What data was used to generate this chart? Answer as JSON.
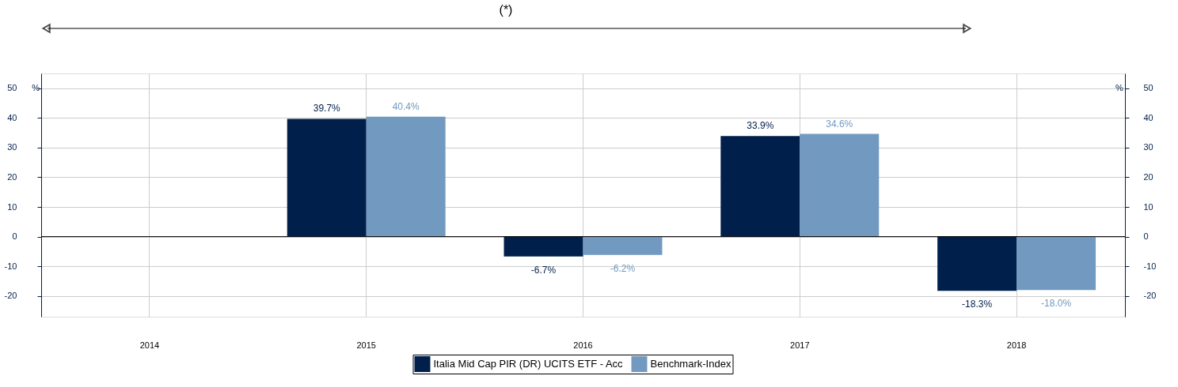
{
  "chart_data": {
    "type": "bar",
    "annotations": [
      "(*)"
    ],
    "categories": [
      "2014",
      "2015",
      "2016",
      "2017",
      "2018"
    ],
    "series": [
      {
        "name": "Italia Mid Cap PIR (DR) UCITS ETF - Acc",
        "color": "#001f4b",
        "values": [
          null,
          39.7,
          -6.7,
          33.9,
          -18.3
        ],
        "value_labels": [
          null,
          "39.7%",
          "-6.7%",
          "33.9%",
          "-18.3%"
        ]
      },
      {
        "name": "Benchmark-Index",
        "color": "#7299bf",
        "values": [
          null,
          40.4,
          -6.2,
          34.6,
          -18.0
        ],
        "value_labels": [
          null,
          "40.4%",
          "-6.2%",
          "34.6%",
          "-18.0%"
        ]
      }
    ],
    "ylabel": "%",
    "y2label": "%",
    "ylim": [
      -27,
      55
    ],
    "yticks": [
      -20,
      -10,
      0,
      10,
      20,
      30,
      40,
      50
    ],
    "y2lim": [
      -27,
      55
    ],
    "y2ticks": [
      -20,
      -10,
      0,
      10,
      20,
      30,
      40,
      50
    ],
    "grid": true,
    "legend": "bottom"
  }
}
